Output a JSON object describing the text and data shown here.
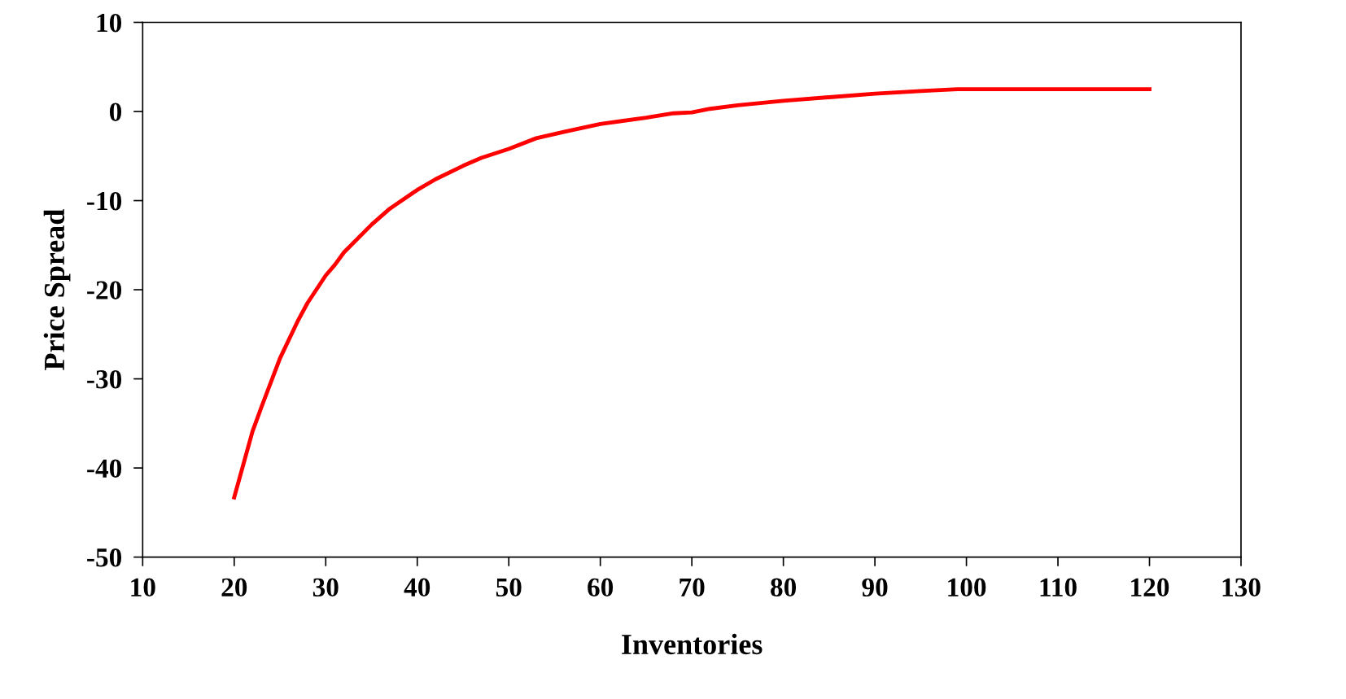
{
  "chart_data": {
    "type": "line",
    "xlabel": "Inventories",
    "ylabel": "Price Spread",
    "xlim": [
      10,
      130
    ],
    "xticks": [
      10,
      20,
      30,
      40,
      50,
      60,
      70,
      80,
      90,
      100,
      110,
      120,
      130
    ],
    "ylim": [
      -50,
      10
    ],
    "yticks": [
      -50,
      -40,
      -30,
      -20,
      -10,
      0,
      10
    ],
    "grid": false,
    "marker": "none",
    "line_style": "solid",
    "series": [
      {
        "color": "#ff0000",
        "x": [
          20,
          22,
          23,
          25,
          27,
          28,
          30,
          31,
          32,
          35,
          37,
          40,
          42,
          45,
          47,
          50,
          53,
          56,
          60,
          65,
          68,
          70,
          72,
          75,
          80,
          85,
          90,
          95,
          99,
          120
        ],
        "values": [
          -43.3,
          -35.9,
          -33.1,
          -27.7,
          -23.4,
          -21.5,
          -18.4,
          -17.2,
          -15.8,
          -12.7,
          -10.9,
          -8.8,
          -7.6,
          -6.1,
          -5.2,
          -4.2,
          -3.0,
          -2.3,
          -1.4,
          -0.7,
          -0.2,
          -0.1,
          0.3,
          0.7,
          1.2,
          1.6,
          2.0,
          2.3,
          2.5,
          2.5
        ]
      }
    ]
  }
}
